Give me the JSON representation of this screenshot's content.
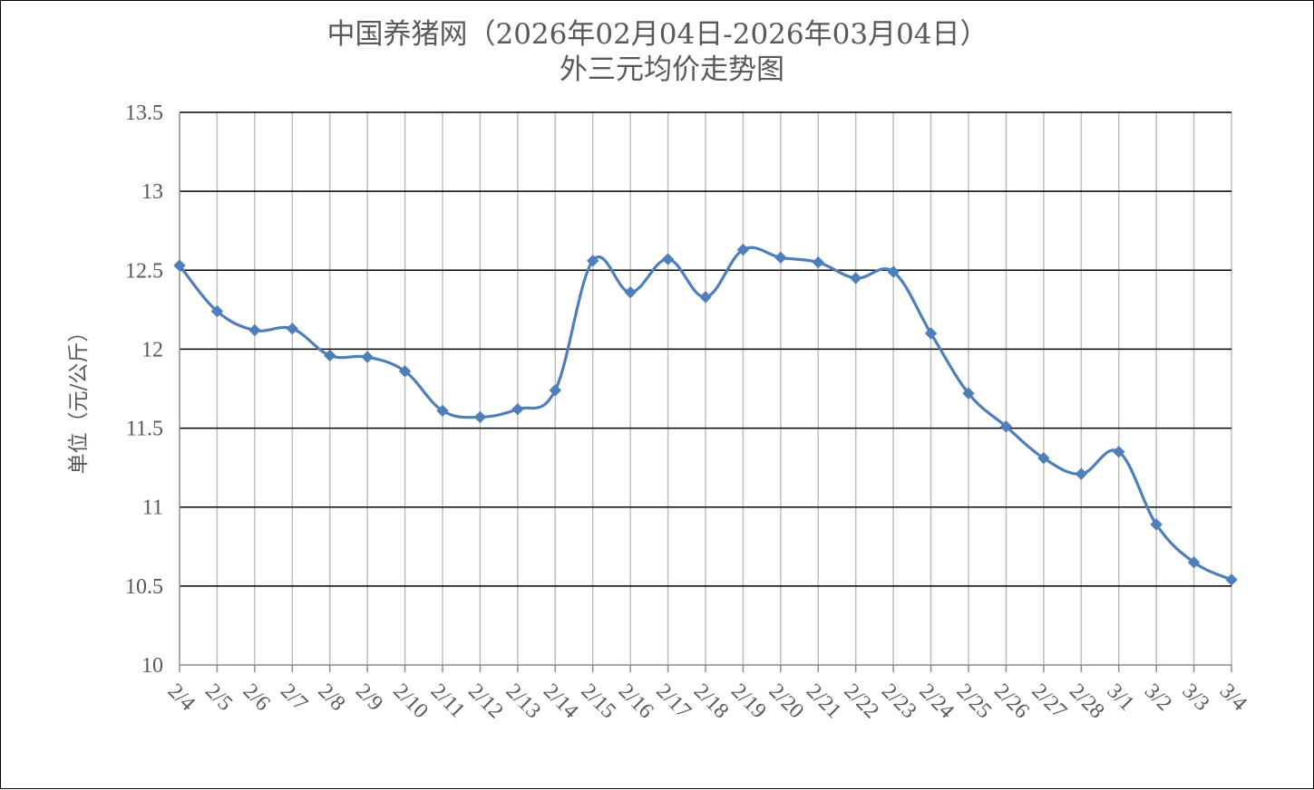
{
  "chart_data": {
    "type": "line",
    "title": "中国养猪网（2026年02月04日-2026年03月04日）",
    "subtitle": "外三元均价走势图",
    "xlabel": "",
    "ylabel": "单位（元/公斤）",
    "ylim": [
      10,
      13.5
    ],
    "yticks": [
      "10",
      "10.5",
      "11",
      "11.5",
      "12",
      "12.5",
      "13",
      "13.5"
    ],
    "grid": true,
    "legend": "none",
    "categories": [
      "2/4",
      "2/5",
      "2/6",
      "2/7",
      "2/8",
      "2/9",
      "2/10",
      "2/11",
      "2/12",
      "2/13",
      "2/14",
      "2/15",
      "2/16",
      "2/17",
      "2/18",
      "2/19",
      "2/20",
      "2/21",
      "2/22",
      "2/23",
      "2/24",
      "2/25",
      "2/26",
      "2/27",
      "2/28",
      "3/1",
      "3/2",
      "3/3",
      "3/4"
    ],
    "series": [
      {
        "values": [
          12.53,
          12.24,
          12.12,
          12.13,
          11.96,
          11.95,
          11.86,
          11.61,
          11.57,
          11.62,
          11.74,
          12.56,
          12.36,
          12.57,
          12.33,
          12.63,
          12.58,
          12.55,
          12.45,
          12.49,
          12.1,
          11.72,
          11.51,
          11.31,
          11.21,
          11.35,
          10.89,
          10.65,
          10.54
        ],
        "color": "#4f7fbb"
      }
    ]
  }
}
